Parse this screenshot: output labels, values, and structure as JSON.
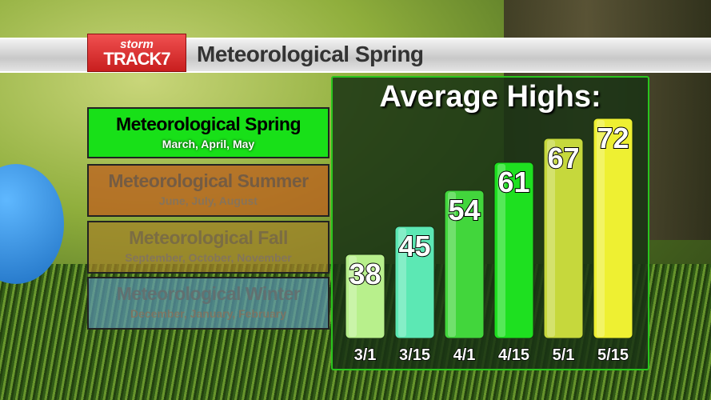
{
  "header": {
    "logo_text": "stormTRACK7",
    "title": "Meteorological Spring"
  },
  "seasons": [
    {
      "name": "Meteorological Spring",
      "months": "March, April, May",
      "active": true
    },
    {
      "name": "Meteorological Summer",
      "months": "June, July, August",
      "active": false
    },
    {
      "name": "Meteorological Fall",
      "months": "September, October, November",
      "active": false
    },
    {
      "name": "Meteorological Winter",
      "months": "December, January, February",
      "active": false
    }
  ],
  "chart_data": {
    "type": "bar",
    "title": "Average Highs:",
    "categories": [
      "3/1",
      "3/15",
      "4/1",
      "4/15",
      "5/1",
      "5/15"
    ],
    "values": [
      38,
      45,
      54,
      61,
      67,
      72
    ],
    "colors": [
      "#b8f08c",
      "#5ce8b4",
      "#42d63c",
      "#1ee020",
      "#c6d83c",
      "#eef032"
    ],
    "data_labels": true,
    "grid": false
  }
}
